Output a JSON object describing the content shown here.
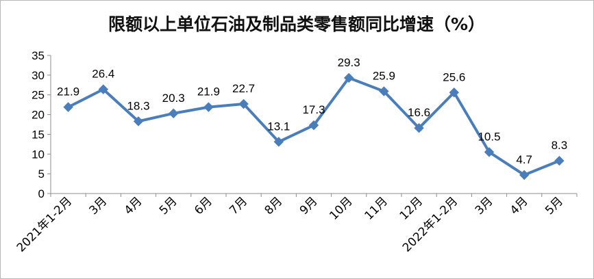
{
  "chart_data": {
    "type": "line",
    "title": "限额以上单位石油及制品类零售额同比增速（%）",
    "xlabel": "",
    "ylabel": "",
    "categories": [
      "2021年1-2月",
      "3月",
      "4月",
      "5月",
      "6月",
      "7月",
      "8月",
      "9月",
      "10月",
      "11月",
      "12月",
      "2022年1-2月",
      "3月",
      "4月",
      "5月"
    ],
    "series": [
      {
        "values": [
          21.9,
          26.4,
          18.3,
          20.3,
          21.9,
          22.7,
          13.1,
          17.3,
          29.3,
          25.9,
          16.6,
          25.6,
          10.5,
          4.7,
          8.3
        ],
        "labels": [
          "21.9",
          "26.4",
          "18.3",
          "20.3",
          "21.9",
          "22.7",
          "13.1",
          "17.3",
          "29.3",
          "25.9",
          "16.6",
          "25.6",
          "10.5",
          "4.7",
          "8.3"
        ],
        "color": "#4a7ebb",
        "marker": "diamond"
      }
    ],
    "ylim": [
      0,
      35
    ],
    "yticks": [
      0,
      5,
      10,
      15,
      20,
      25,
      30,
      35
    ],
    "ytick_labels": [
      "0",
      "5",
      "10",
      "15",
      "20",
      "25",
      "30",
      "35"
    ],
    "grid": false,
    "legend": "none"
  }
}
